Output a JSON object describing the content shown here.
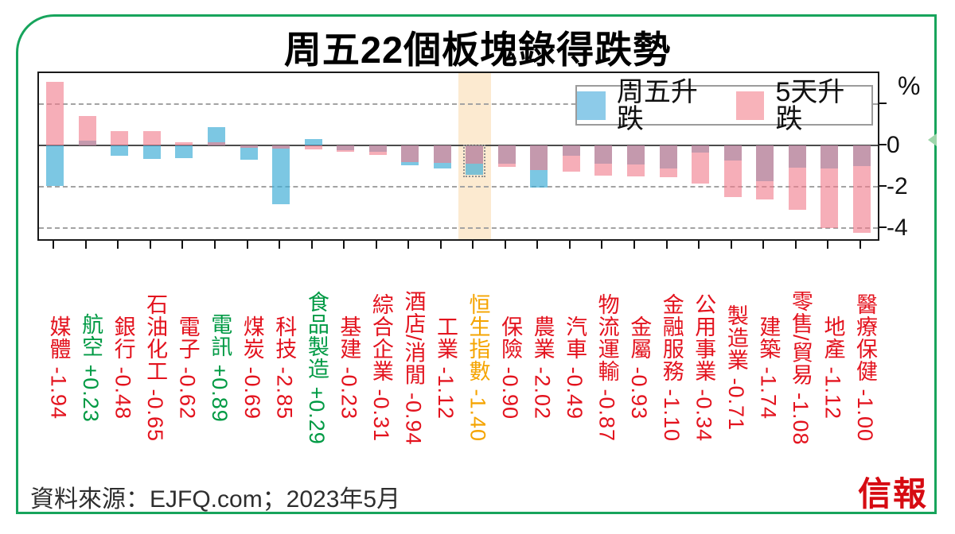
{
  "title": "周五22個板塊錄得跌勢",
  "legend": {
    "items": [
      {
        "label": "周五升跌",
        "color": "#8dcbe9"
      },
      {
        "label": "5天升跌",
        "color": "#f8b3ba"
      }
    ]
  },
  "axis": {
    "unit_label": "%",
    "tick_values": [
      2,
      0,
      -2,
      -4
    ],
    "tick_labels": [
      "0",
      "-2",
      "-4"
    ],
    "gridline_values": [
      2,
      -2,
      -4
    ]
  },
  "source_text": "資料來源：EJFQ.com；2023年5月",
  "logo_text": "信報",
  "colors": {
    "frame_green": "#17a45c",
    "friday_bar": "rgba(62,172,214,0.68)",
    "five_day_bar": "rgba(240,125,140,0.62)",
    "legend_blue": "#8dcbe9",
    "legend_pink": "#f8b3ba",
    "highlight_bg": "#fcead0",
    "label_red": "#e3131e",
    "label_green": "#009a44",
    "label_orange": "#f5a400",
    "logo_red": "#d60b12"
  },
  "chart_data": {
    "type": "bar",
    "title": "周五22個板塊錄得跌勢",
    "categories": [
      "媒體",
      "航空",
      "銀行",
      "石油化工",
      "電子",
      "電訊",
      "煤炭",
      "科技",
      "食品製造",
      "基建",
      "綜合企業",
      "酒店/消閒",
      "工業",
      "恒生指數",
      "保險",
      "農業",
      "汽車",
      "物流運輸",
      "金屬",
      "金融服務",
      "公用事業",
      "製造業",
      "建築",
      "零售/貿易",
      "地產",
      "醫療保健"
    ],
    "series": [
      {
        "name": "周五升跌",
        "values": [
          -1.94,
          0.23,
          -0.48,
          -0.65,
          -0.62,
          0.89,
          -0.69,
          -2.85,
          0.29,
          -0.23,
          -0.31,
          -0.94,
          -1.12,
          -1.4,
          -0.9,
          -2.02,
          -0.49,
          -0.87,
          -0.93,
          -1.1,
          -0.34,
          -0.71,
          -1.74,
          -1.08,
          -1.12,
          -1.0
        ]
      },
      {
        "name": "5天升跌",
        "values": [
          3.05,
          1.4,
          0.7,
          0.7,
          0.15,
          0.15,
          -0.1,
          -0.15,
          -0.2,
          -0.3,
          -0.45,
          -0.8,
          -0.85,
          -0.9,
          -1.05,
          -1.2,
          -1.25,
          -1.45,
          -1.5,
          -1.55,
          -1.85,
          -2.5,
          -2.6,
          -3.1,
          -4.0,
          -4.2
        ]
      }
    ],
    "value_labels": [
      "-1.94",
      "+0.23",
      "-0.48",
      "-0.65",
      "-0.62",
      "+0.89",
      "-0.69",
      "-2.85",
      "+0.29",
      "-0.23",
      "-0.31",
      "-0.94",
      "-1.12",
      "-1.40",
      "-0.90",
      "-2.02",
      "-0.49",
      "-0.87",
      "-0.93",
      "-1.10",
      "-0.34",
      "-0.71",
      "-1.74",
      "-1.08",
      "-1.12",
      "-1.00"
    ],
    "highlight_category": "恒生指數",
    "ylabel": "%",
    "ylim": [
      -4.6,
      3.56
    ],
    "grid": "dashed horizontal at 2, -2, -4; solid zero line",
    "legend_position": "top-right inside plot"
  }
}
